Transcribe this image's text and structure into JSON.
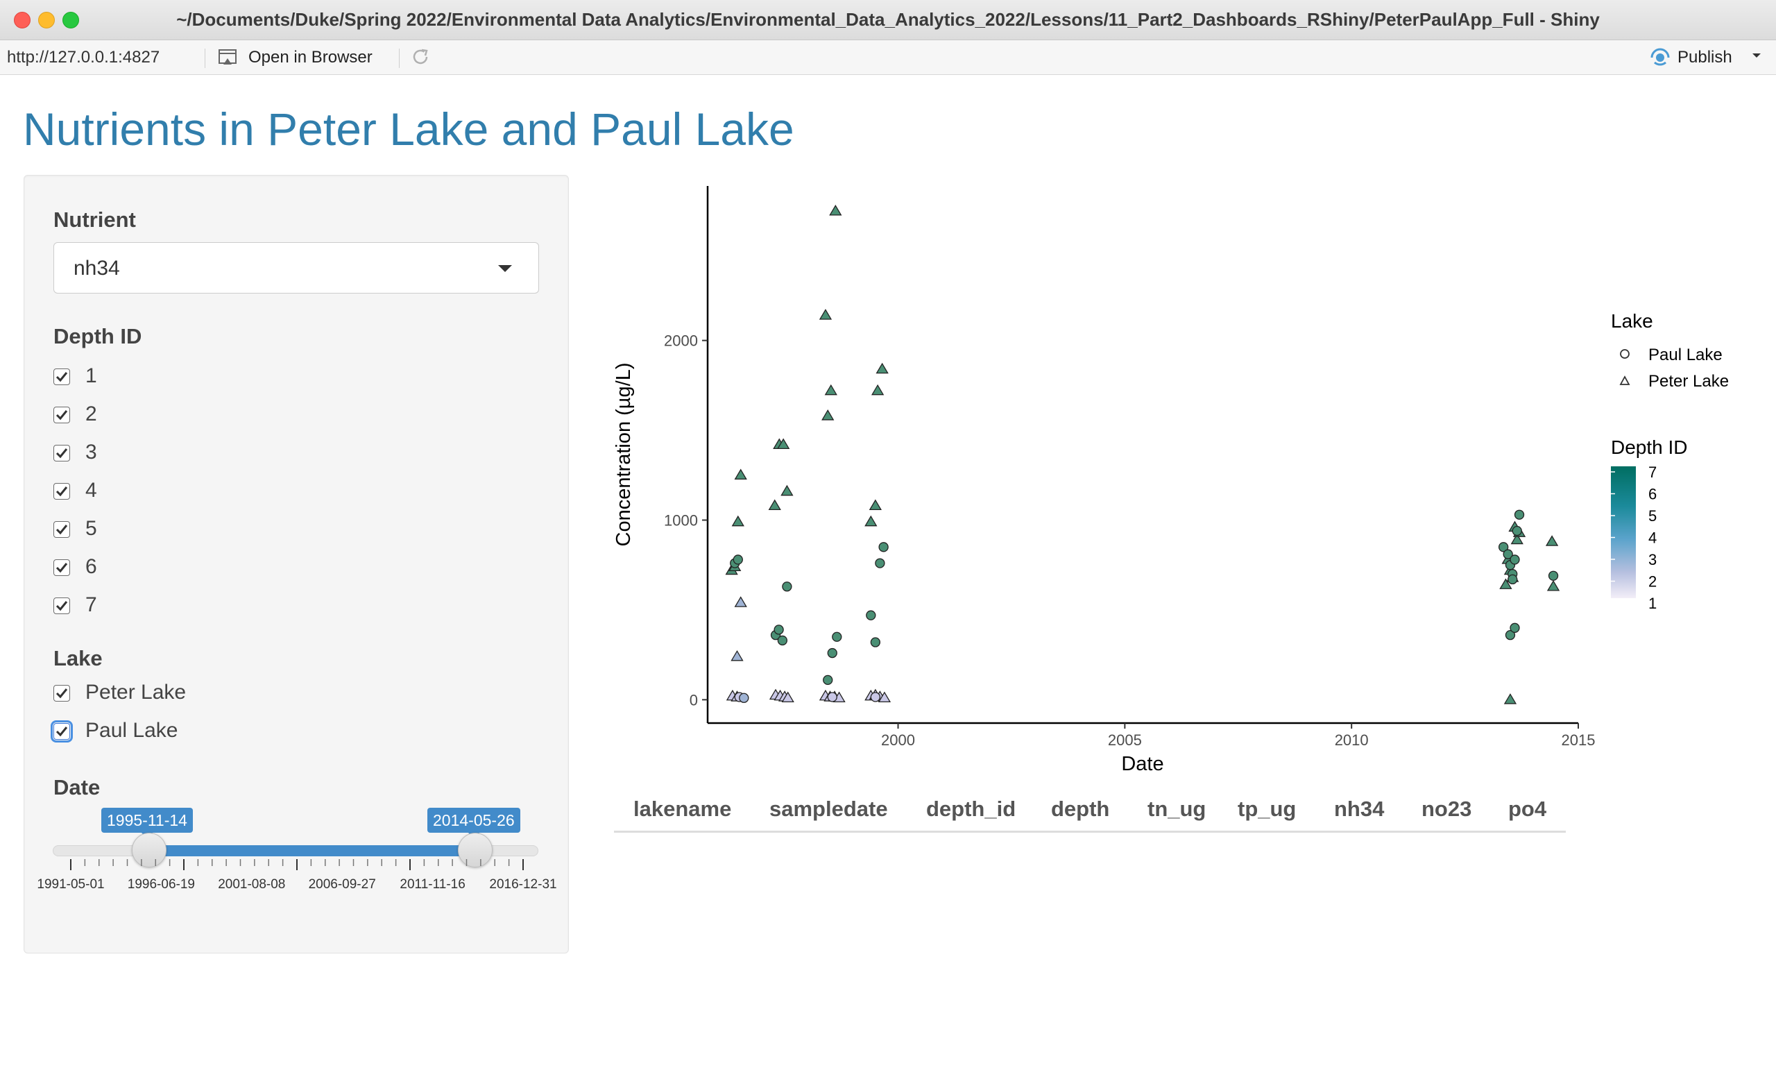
{
  "window": {
    "title": "~/Documents/Duke/Spring 2022/Environmental Data Analytics/Environmental_Data_Analytics_2022/Lessons/11_Part2_Dashboards_RShiny/PeterPaulApp_Full - Shiny"
  },
  "toolbar": {
    "url": "http://127.0.0.1:4827",
    "open_in_browser": "Open in Browser",
    "publish": "Publish",
    "icons": [
      "open-browser-icon",
      "refresh-icon",
      "publish-icon",
      "chevron-down-icon"
    ]
  },
  "page": {
    "title": "Nutrients in Peter Lake and Paul Lake"
  },
  "sidebar": {
    "nutrient": {
      "label": "Nutrient",
      "selected": "nh34"
    },
    "depth": {
      "label": "Depth ID",
      "options": [
        {
          "label": "1",
          "checked": true
        },
        {
          "label": "2",
          "checked": true
        },
        {
          "label": "3",
          "checked": true
        },
        {
          "label": "4",
          "checked": true
        },
        {
          "label": "5",
          "checked": true
        },
        {
          "label": "6",
          "checked": true
        },
        {
          "label": "7",
          "checked": true
        }
      ]
    },
    "lake": {
      "label": "Lake",
      "options": [
        {
          "label": "Peter Lake",
          "checked": true
        },
        {
          "label": "Paul Lake",
          "checked": true
        }
      ]
    },
    "date": {
      "label": "Date",
      "from": "1995-11-14",
      "to": "2014-05-26",
      "min": "1991-05-01",
      "max": "2016-12-31",
      "tick_labels": [
        "1991-05-01",
        "1996-06-19",
        "2001-08-08",
        "2006-09-27",
        "2011-11-16",
        "2016-12-31"
      ]
    }
  },
  "chart_data": {
    "type": "scatter",
    "title": "",
    "xlabel": "Date",
    "ylabel": "Concentration (µg/L)",
    "xlim": [
      1995.8,
      2015.0
    ],
    "ylim": [
      -130,
      2860
    ],
    "xticks": [
      2000,
      2005,
      2010,
      2015
    ],
    "yticks": [
      0,
      1000,
      2000
    ],
    "grid": false,
    "legend_lake": {
      "title": "Lake",
      "entries": [
        "Paul Lake",
        "Peter Lake"
      ],
      "placement": "right"
    },
    "legend_depth": {
      "title": "Depth ID",
      "labels": [
        "7",
        "6",
        "5",
        "4",
        "3",
        "2",
        "1"
      ],
      "colors": [
        "#006e61",
        "#1a8a8a",
        "#3690c0",
        "#5aa8c8",
        "#9bb6d8",
        "#c8c8e6",
        "#f2eef8"
      ],
      "placement": "right"
    },
    "colors": {
      "high": "#4a8f74",
      "low": "#c9c7e6",
      "mid": "#9fb3d4"
    },
    "series": [
      {
        "name": "Peter Lake",
        "points": [
          {
            "x": 1996.33,
            "y": 720,
            "c": "high"
          },
          {
            "x": 1996.4,
            "y": 740,
            "c": "high"
          },
          {
            "x": 1996.47,
            "y": 990,
            "c": "high"
          },
          {
            "x": 1996.53,
            "y": 1250,
            "c": "high"
          },
          {
            "x": 1996.53,
            "y": 540,
            "c": "mid"
          },
          {
            "x": 1996.45,
            "y": 240,
            "c": "mid"
          },
          {
            "x": 1996.35,
            "y": 20,
            "c": "low"
          },
          {
            "x": 1996.45,
            "y": 15,
            "c": "low"
          },
          {
            "x": 1997.28,
            "y": 1080,
            "c": "high"
          },
          {
            "x": 1997.38,
            "y": 1420,
            "c": "high"
          },
          {
            "x": 1997.47,
            "y": 1420,
            "c": "high"
          },
          {
            "x": 1997.55,
            "y": 1160,
            "c": "high"
          },
          {
            "x": 1997.3,
            "y": 25,
            "c": "low"
          },
          {
            "x": 1997.4,
            "y": 20,
            "c": "low"
          },
          {
            "x": 1997.5,
            "y": 15,
            "c": "low"
          },
          {
            "x": 1997.57,
            "y": 10,
            "c": "low"
          },
          {
            "x": 1998.4,
            "y": 2140,
            "c": "high"
          },
          {
            "x": 1998.45,
            "y": 1580,
            "c": "high"
          },
          {
            "x": 1998.52,
            "y": 1720,
            "c": "high"
          },
          {
            "x": 1998.62,
            "y": 2720,
            "c": "high"
          },
          {
            "x": 1998.4,
            "y": 20,
            "c": "low"
          },
          {
            "x": 1998.5,
            "y": 15,
            "c": "low"
          },
          {
            "x": 1998.6,
            "y": 15,
            "c": "low"
          },
          {
            "x": 1998.7,
            "y": 10,
            "c": "low"
          },
          {
            "x": 1999.4,
            "y": 990,
            "c": "high"
          },
          {
            "x": 1999.5,
            "y": 1080,
            "c": "high"
          },
          {
            "x": 1999.55,
            "y": 1720,
            "c": "high"
          },
          {
            "x": 1999.65,
            "y": 1840,
            "c": "high"
          },
          {
            "x": 1999.4,
            "y": 20,
            "c": "low"
          },
          {
            "x": 1999.5,
            "y": 25,
            "c": "low"
          },
          {
            "x": 1999.6,
            "y": 15,
            "c": "low"
          },
          {
            "x": 1999.7,
            "y": 10,
            "c": "low"
          },
          {
            "x": 2013.4,
            "y": 640,
            "c": "high"
          },
          {
            "x": 2013.45,
            "y": 780,
            "c": "high"
          },
          {
            "x": 2013.5,
            "y": 720,
            "c": "high"
          },
          {
            "x": 2013.55,
            "y": 680,
            "c": "high"
          },
          {
            "x": 2013.6,
            "y": 960,
            "c": "high"
          },
          {
            "x": 2013.65,
            "y": 890,
            "c": "high"
          },
          {
            "x": 2013.7,
            "y": 930,
            "c": "high"
          },
          {
            "x": 2013.5,
            "y": 0,
            "c": "high"
          },
          {
            "x": 2014.42,
            "y": 880,
            "c": "high"
          },
          {
            "x": 2014.45,
            "y": 630,
            "c": "high"
          }
        ]
      },
      {
        "name": "Paul Lake",
        "points": [
          {
            "x": 1996.4,
            "y": 760,
            "c": "high"
          },
          {
            "x": 1996.47,
            "y": 780,
            "c": "high"
          },
          {
            "x": 1996.5,
            "y": 15,
            "c": "low"
          },
          {
            "x": 1996.6,
            "y": 10,
            "c": "mid"
          },
          {
            "x": 1997.3,
            "y": 360,
            "c": "high"
          },
          {
            "x": 1997.37,
            "y": 390,
            "c": "high"
          },
          {
            "x": 1997.45,
            "y": 330,
            "c": "high"
          },
          {
            "x": 1997.55,
            "y": 630,
            "c": "high"
          },
          {
            "x": 1998.45,
            "y": 110,
            "c": "high"
          },
          {
            "x": 1998.55,
            "y": 260,
            "c": "high"
          },
          {
            "x": 1998.65,
            "y": 350,
            "c": "high"
          },
          {
            "x": 1998.55,
            "y": 15,
            "c": "low"
          },
          {
            "x": 1999.4,
            "y": 470,
            "c": "high"
          },
          {
            "x": 1999.5,
            "y": 320,
            "c": "high"
          },
          {
            "x": 1999.6,
            "y": 760,
            "c": "high"
          },
          {
            "x": 1999.68,
            "y": 850,
            "c": "high"
          },
          {
            "x": 1999.5,
            "y": 15,
            "c": "low"
          },
          {
            "x": 2013.35,
            "y": 850,
            "c": "high"
          },
          {
            "x": 2013.45,
            "y": 810,
            "c": "high"
          },
          {
            "x": 2013.5,
            "y": 750,
            "c": "high"
          },
          {
            "x": 2013.55,
            "y": 700,
            "c": "high"
          },
          {
            "x": 2013.6,
            "y": 780,
            "c": "high"
          },
          {
            "x": 2013.65,
            "y": 940,
            "c": "high"
          },
          {
            "x": 2013.7,
            "y": 1030,
            "c": "high"
          },
          {
            "x": 2013.5,
            "y": 360,
            "c": "high"
          },
          {
            "x": 2013.6,
            "y": 400,
            "c": "high"
          },
          {
            "x": 2013.55,
            "y": 670,
            "c": "high"
          },
          {
            "x": 2014.45,
            "y": 690,
            "c": "high"
          }
        ]
      }
    ]
  },
  "table": {
    "columns": [
      "lakename",
      "sampledate",
      "depth_id",
      "depth",
      "tn_ug",
      "tp_ug",
      "nh34",
      "no23",
      "po4"
    ]
  }
}
